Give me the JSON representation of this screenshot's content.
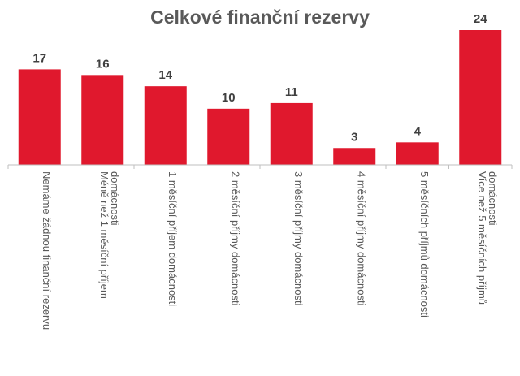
{
  "chart_data": {
    "type": "bar",
    "title": "Celkové finanční rezervy",
    "xlabel": "",
    "ylabel": "",
    "ylim": [
      0,
      24
    ],
    "grid": false,
    "categories": [
      "Nemáme žádnou finanční rezervu",
      "Méně než 1 měsíční příjem domácnosti",
      "1 měsíční příjem domácnosti",
      "2 měsíční příjmy domácnosti",
      "3 měsíční příjmy domácnosti",
      "4 měsíční příjmy domácnosti",
      "5 měsíčních příjmů domácnosti",
      "Více než 5 měsíčních příjmů domácnosti"
    ],
    "values": [
      17,
      16,
      14,
      10,
      11,
      3,
      4,
      24
    ],
    "colors": {
      "bar": "#e0182d",
      "axis": "#bfbfbf",
      "title": "#595959",
      "label": "#404040"
    }
  }
}
